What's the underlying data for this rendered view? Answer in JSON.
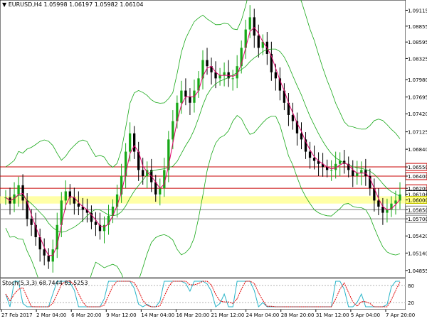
{
  "chart_header": {
    "menu_arrow": "▼",
    "symbol": "EURUSD,H4",
    "ohlc": "1.05998 1.06197 1.05982 1.06104"
  },
  "stoch_header": {
    "label": "Stoch(5,3,3) 68.7444 63.5253"
  },
  "colors": {
    "up_candle": "#18a818",
    "down_candle": "#000000",
    "bollinger": "#18a818",
    "ma": "#e0006a",
    "resistance": "#c80000",
    "support": "#808080",
    "band": "#ffff80",
    "stoch_main": "#28b4c8",
    "stoch_signal": "#e00000"
  },
  "chart_data": {
    "type": "candlestick",
    "symbol": "EURUSD",
    "timeframe": "H4",
    "y_ticks": [
      "1.09115",
      "1.08855",
      "1.08595",
      "1.08325",
      "1.07980",
      "1.07695",
      "1.07420",
      "1.07125",
      "1.06840",
      "1.06550",
      "1.06400",
      "1.06200",
      "1.06104",
      "1.06000",
      "1.05850",
      "1.05700",
      "1.05420",
      "1.05140",
      "1.04855"
    ],
    "ylim": [
      1.0476,
      1.0926
    ],
    "horizontal_levels": [
      {
        "label": "1.06550",
        "value": 1.0655,
        "kind": "resistance"
      },
      {
        "label": "1.06400",
        "value": 1.064,
        "kind": "resistance"
      },
      {
        "label": "1.06200",
        "value": 1.062,
        "kind": "resistance"
      },
      {
        "label": "1.05850",
        "value": 1.0585,
        "kind": "support"
      },
      {
        "label": "1.05700",
        "value": 1.057,
        "kind": "support"
      }
    ],
    "current_price": {
      "label": "1.06104",
      "value": 1.06104
    },
    "highlight_band": {
      "label": "1.06000",
      "low": 1.0595,
      "high": 1.0607
    },
    "x_labels": [
      "27 Feb 2017",
      "2 Mar 04:00",
      "6 Mar 20:00",
      "9 Mar 12:00",
      "14 Mar 04:00",
      "16 Mar 20:00",
      "21 Mar 12:00",
      "24 Mar 04:00",
      "28 Mar 20:00",
      "31 Mar 12:00",
      "5 Apr 04:00",
      "7 Apr 20:00"
    ],
    "closes": [
      1.0605,
      1.0595,
      1.061,
      1.0625,
      1.06,
      1.057,
      1.056,
      1.054,
      1.052,
      1.051,
      1.05,
      1.052,
      1.056,
      1.06,
      1.0615,
      1.0605,
      1.0595,
      1.059,
      1.0585,
      1.058,
      1.0565,
      1.056,
      1.055,
      1.056,
      1.0575,
      1.059,
      1.061,
      1.064,
      1.068,
      1.071,
      1.068,
      1.065,
      1.064,
      1.065,
      1.063,
      1.061,
      1.062,
      1.065,
      1.07,
      1.073,
      1.076,
      1.078,
      1.077,
      1.076,
      1.078,
      1.08,
      1.083,
      1.082,
      1.081,
      1.08,
      1.0805,
      1.081,
      1.08,
      1.08,
      1.082,
      1.085,
      1.088,
      1.09,
      1.087,
      1.085,
      1.086,
      1.084,
      1.081,
      1.08,
      1.078,
      1.076,
      1.074,
      1.073,
      1.071,
      1.07,
      1.068,
      1.067,
      1.0665,
      1.066,
      1.0655,
      1.065,
      1.065,
      1.066,
      1.0665,
      1.066,
      1.065,
      1.064,
      1.0645,
      1.065,
      1.064,
      1.062,
      1.06,
      1.059,
      1.058,
      1.0585,
      1.0595,
      1.06,
      1.061
    ],
    "stochastic": {
      "name": "Stoch(5,3,3)",
      "main_last": 68.7444,
      "signal_last": 63.5253,
      "levels": [
        20,
        80
      ],
      "axis_labels": [
        "80",
        "20"
      ]
    }
  }
}
